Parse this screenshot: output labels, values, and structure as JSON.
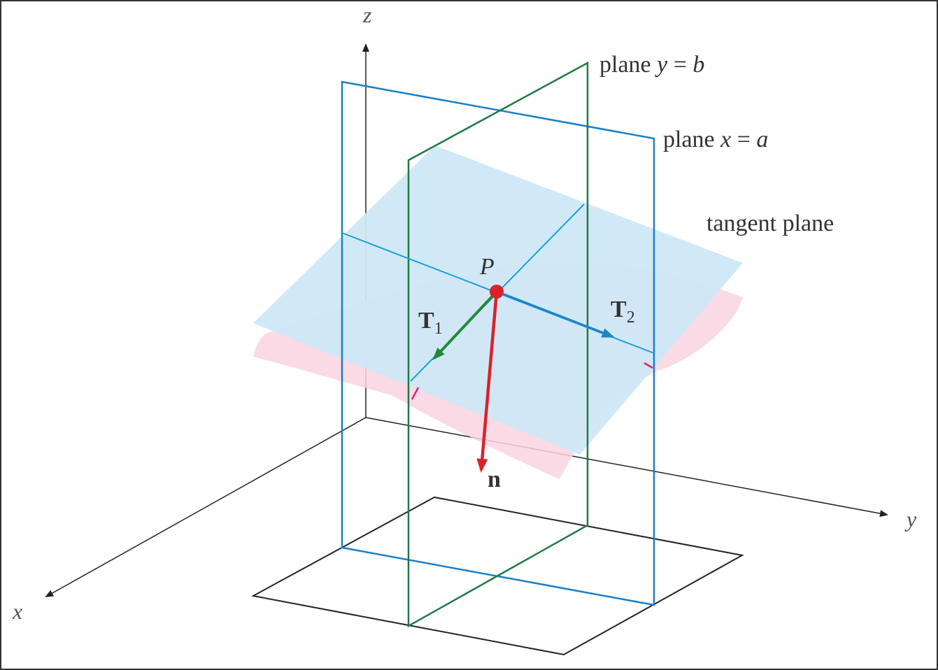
{
  "colors": {
    "axis": "#222222",
    "plane_x_a": "#1a7fc8",
    "plane_y_b": "#1f7a45",
    "tangent_fill": "#cfe8f7",
    "surface_fill": "#f9d4e0",
    "tangent_line": "#1aa0d8",
    "point": "#d8232a",
    "T1": "#1f8a3b",
    "T2": "#1b86c9",
    "normal": "#d8232a",
    "tick": "#e0207a"
  },
  "axes": {
    "x": "x",
    "y": "y",
    "z": "z"
  },
  "labels": {
    "plane_y": {
      "prefix": "plane ",
      "var": "y",
      "eq": " = ",
      "val": "b"
    },
    "plane_x": {
      "prefix": "plane ",
      "var": "x",
      "eq": " = ",
      "val": "a"
    },
    "tangent_plane": "tangent plane",
    "point": "P",
    "T1": {
      "main": "T",
      "sub": "1"
    },
    "T2": {
      "main": "T",
      "sub": "2"
    },
    "normal": "n"
  }
}
